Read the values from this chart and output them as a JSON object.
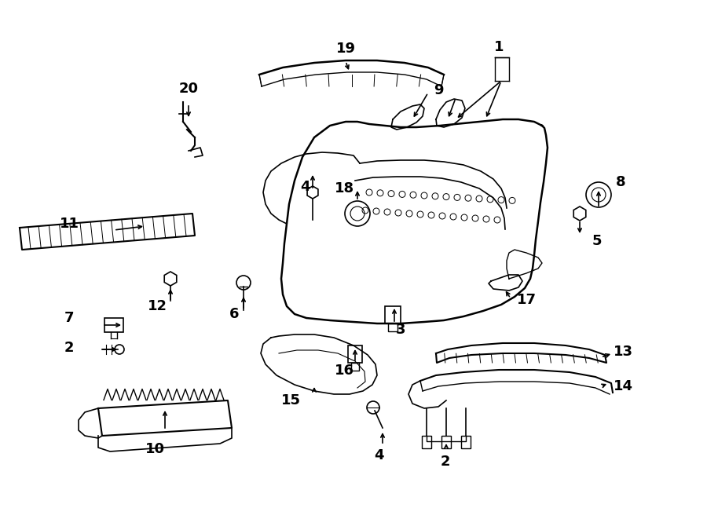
{
  "bg_color": "#ffffff",
  "line_color": "#000000",
  "fig_width": 9.0,
  "fig_height": 6.61,
  "dpi": 100,
  "font_size": 13,
  "font_weight": "bold"
}
